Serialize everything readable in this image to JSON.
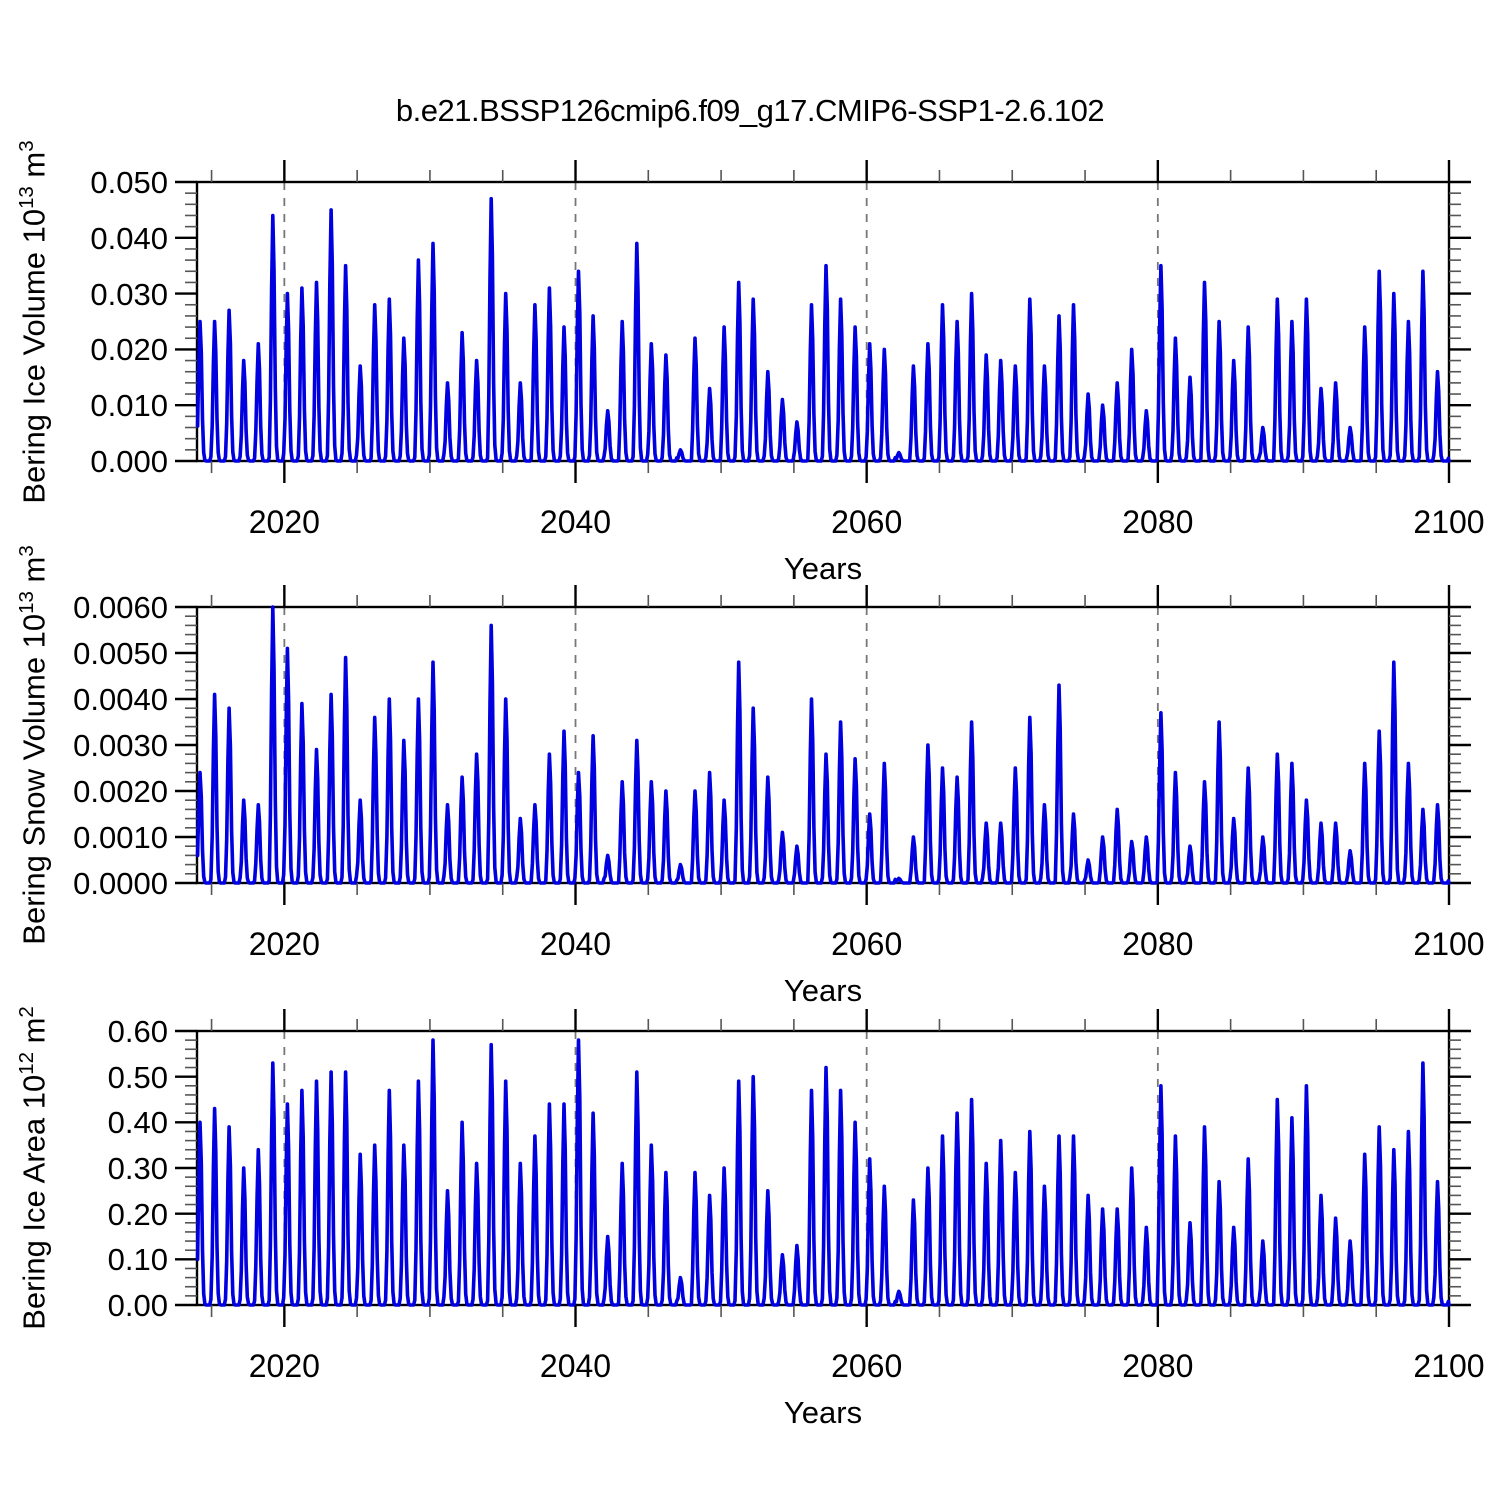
{
  "figure": {
    "title": "b.e21.BSSP126cmip6.f09_g17.CMIP6-SSP1-2.6.102",
    "background_color": "#ffffff",
    "line_color": "#0000e0",
    "frame_color": "#000000",
    "gridline_color": "#777777",
    "years": {
      "start": 2014,
      "end": 2099
    },
    "x_axis": {
      "label": "Years",
      "min": 2014,
      "max": 2100,
      "major_tick_years": [
        2020,
        2040,
        2060,
        2080,
        2100
      ],
      "major_tick_labels": [
        "2020",
        "2040",
        "2060",
        "2080",
        "2100"
      ],
      "minor_tick_step_years": 5,
      "dashed_gridline_years": [
        2020,
        2040,
        2060,
        2080
      ]
    }
  },
  "chart_data": [
    {
      "type": "line",
      "panel": "top",
      "ylabel": "Bering Ice Volume 10^13 m^3",
      "ylabel_parts": [
        {
          "t": "Bering Ice Volume 10"
        },
        {
          "sup": "13"
        },
        {
          "t": " m"
        },
        {
          "sup": "3"
        }
      ],
      "xlabel": "Years",
      "ylim": [
        0,
        0.05
      ],
      "ytick_labels": [
        "0.050",
        "0.040",
        "0.030",
        "0.020",
        "0.010",
        "0.000"
      ],
      "ytick_major_step": 0.01,
      "ytick_minor_step": 0.002,
      "grid": "vertical-dashed-only",
      "legend": "none",
      "series_description": "Monthly seasonal cycle 2014-2100: rises each winter to the annual peak listed below, returns to ~0 every summer.",
      "annual_peak_years_start": 2014,
      "annual_peaks": [
        0.025,
        0.025,
        0.027,
        0.018,
        0.021,
        0.044,
        0.03,
        0.031,
        0.032,
        0.045,
        0.035,
        0.017,
        0.028,
        0.029,
        0.022,
        0.036,
        0.039,
        0.014,
        0.023,
        0.018,
        0.047,
        0.03,
        0.014,
        0.028,
        0.031,
        0.024,
        0.034,
        0.026,
        0.009,
        0.025,
        0.039,
        0.021,
        0.019,
        0.002,
        0.022,
        0.013,
        0.024,
        0.032,
        0.029,
        0.016,
        0.011,
        0.007,
        0.028,
        0.035,
        0.029,
        0.024,
        0.021,
        0.02,
        0.0015,
        0.017,
        0.021,
        0.028,
        0.025,
        0.03,
        0.019,
        0.018,
        0.017,
        0.029,
        0.017,
        0.026,
        0.028,
        0.012,
        0.01,
        0.014,
        0.02,
        0.009,
        0.035,
        0.022,
        0.015,
        0.032,
        0.025,
        0.018,
        0.024,
        0.006,
        0.029,
        0.025,
        0.029,
        0.013,
        0.014,
        0.006,
        0.024,
        0.034,
        0.03,
        0.025,
        0.034,
        0.016
      ]
    },
    {
      "type": "line",
      "panel": "middle",
      "ylabel": "Bering Snow Volume 10^13 m^3",
      "ylabel_parts": [
        {
          "t": "Bering Snow Volume 10"
        },
        {
          "sup": "13"
        },
        {
          "t": " m"
        },
        {
          "sup": "3"
        }
      ],
      "xlabel": "Years",
      "ylim": [
        0,
        0.006
      ],
      "ytick_labels": [
        "0.0060",
        "0.0050",
        "0.0040",
        "0.0030",
        "0.0020",
        "0.0010",
        "0.0000"
      ],
      "ytick_major_step": 0.001,
      "ytick_minor_step": 0.0002,
      "grid": "vertical-dashed-only",
      "legend": "none",
      "series_description": "Monthly seasonal cycle 2014-2100: rises each winter to the annual peak listed below, returns to ~0 every summer.",
      "annual_peak_years_start": 2014,
      "annual_peaks": [
        0.0024,
        0.0041,
        0.0038,
        0.0018,
        0.0017,
        0.006,
        0.0051,
        0.0039,
        0.0029,
        0.0041,
        0.0049,
        0.0018,
        0.0036,
        0.004,
        0.0031,
        0.004,
        0.0048,
        0.0017,
        0.0023,
        0.0028,
        0.0056,
        0.004,
        0.0014,
        0.0017,
        0.0028,
        0.0033,
        0.0024,
        0.0032,
        0.0006,
        0.0022,
        0.0031,
        0.0022,
        0.002,
        0.0004,
        0.002,
        0.0024,
        0.0018,
        0.0048,
        0.0038,
        0.0023,
        0.0011,
        0.0008,
        0.004,
        0.0028,
        0.0035,
        0.0027,
        0.0015,
        0.0026,
        0.0001,
        0.001,
        0.003,
        0.0025,
        0.0023,
        0.0035,
        0.0013,
        0.0013,
        0.0025,
        0.0036,
        0.0017,
        0.0043,
        0.0015,
        0.0005,
        0.001,
        0.0016,
        0.0009,
        0.001,
        0.0037,
        0.0024,
        0.0008,
        0.0022,
        0.0035,
        0.0014,
        0.0025,
        0.001,
        0.0028,
        0.0026,
        0.0018,
        0.0013,
        0.0013,
        0.0007,
        0.0026,
        0.0033,
        0.0048,
        0.0026,
        0.0016,
        0.0017
      ]
    },
    {
      "type": "line",
      "panel": "bottom",
      "ylabel": "Bering Ice Area 10^12 m^2",
      "ylabel_parts": [
        {
          "t": "Bering Ice Area 10"
        },
        {
          "sup": "12"
        },
        {
          "t": " m"
        },
        {
          "sup": "2"
        }
      ],
      "xlabel": "Years",
      "ylim": [
        0,
        0.6
      ],
      "ytick_labels": [
        "0.60",
        "0.50",
        "0.40",
        "0.30",
        "0.20",
        "0.10",
        "0.00"
      ],
      "ytick_major_step": 0.1,
      "ytick_minor_step": 0.02,
      "grid": "vertical-dashed-only",
      "legend": "none",
      "series_description": "Monthly seasonal cycle 2014-2100: rises each winter to the annual peak listed below, returns to ~0 every summer.",
      "annual_peak_years_start": 2014,
      "annual_peaks": [
        0.4,
        0.43,
        0.39,
        0.3,
        0.34,
        0.53,
        0.44,
        0.47,
        0.49,
        0.51,
        0.51,
        0.33,
        0.35,
        0.47,
        0.35,
        0.49,
        0.58,
        0.25,
        0.4,
        0.31,
        0.57,
        0.49,
        0.31,
        0.37,
        0.44,
        0.44,
        0.58,
        0.42,
        0.15,
        0.31,
        0.51,
        0.35,
        0.29,
        0.06,
        0.29,
        0.24,
        0.3,
        0.49,
        0.5,
        0.25,
        0.11,
        0.13,
        0.47,
        0.52,
        0.47,
        0.4,
        0.32,
        0.26,
        0.03,
        0.23,
        0.3,
        0.37,
        0.42,
        0.45,
        0.31,
        0.36,
        0.29,
        0.38,
        0.26,
        0.37,
        0.37,
        0.24,
        0.21,
        0.21,
        0.3,
        0.17,
        0.48,
        0.37,
        0.18,
        0.39,
        0.27,
        0.17,
        0.32,
        0.14,
        0.45,
        0.41,
        0.48,
        0.24,
        0.19,
        0.14,
        0.33,
        0.39,
        0.34,
        0.38,
        0.53,
        0.27
      ]
    }
  ]
}
